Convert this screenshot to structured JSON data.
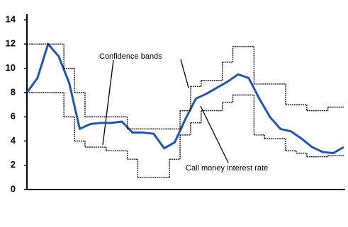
{
  "chart_data": {
    "type": "line",
    "categories": [
      null,
      null,
      null,
      null,
      null,
      null,
      null,
      null,
      null,
      null,
      null,
      null,
      null,
      null,
      null,
      null,
      null,
      null,
      null,
      null,
      null,
      null,
      null,
      null,
      null,
      null,
      null,
      null,
      null,
      null,
      null
    ],
    "series": [
      {
        "color": "#2255aa",
        "style": "line",
        "values": [
          8,
          9.2,
          12,
          11,
          8.8,
          5,
          5.4,
          5.5,
          5.5,
          5.6,
          4.7,
          4.7,
          4.6,
          3.4,
          3.9,
          5.8,
          7.5,
          7.9,
          8.4,
          8.9,
          9.5,
          9.2,
          7.5,
          6,
          5,
          4.8,
          4.2,
          3.5,
          3.1,
          3,
          3.5
        ]
      },
      {
        "color": "#000000",
        "style": "step",
        "values": [
          12,
          12,
          12,
          12,
          10,
          8,
          6,
          6,
          6,
          6,
          5,
          5,
          5,
          5,
          5,
          6.5,
          8.5,
          9,
          9,
          10.5,
          11.8,
          11.8,
          8.7,
          8.7,
          8.7,
          7,
          7,
          6.5,
          6.5,
          6.8,
          6.8
        ]
      },
      {
        "color": "#000000",
        "style": "step",
        "values": [
          8,
          8,
          8,
          8,
          6,
          4,
          3.5,
          3.5,
          3.2,
          3.2,
          2.5,
          1,
          1,
          1,
          2.5,
          4.5,
          5.5,
          6.5,
          6.5,
          7.2,
          7.8,
          7.8,
          4.5,
          4.2,
          4.2,
          3.2,
          3,
          2.7,
          2.7,
          2.8,
          2.8
        ]
      }
    ],
    "annotations": [
      "Confidence bands",
      "Call money interest rate"
    ],
    "ylim": [
      0,
      14
    ],
    "yticks": [
      0,
      2,
      4,
      6,
      8,
      10,
      12,
      14
    ]
  }
}
